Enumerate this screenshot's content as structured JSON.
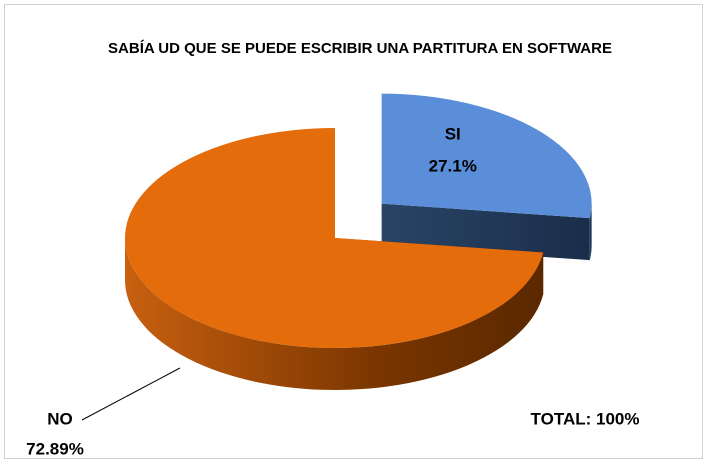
{
  "chart_data": {
    "type": "pie",
    "title": "SABÍA UD QUE SE PUEDE ESCRIBIR UNA PARTITURA EN SOFTWARE",
    "categories": [
      "SI",
      "NO"
    ],
    "values": [
      27.1,
      72.89
    ],
    "value_labels": [
      "27.1%",
      "72.89%"
    ],
    "colors": [
      "#5b8ed8",
      "#e46c0a"
    ],
    "annotation": "TOTAL: 100%"
  }
}
